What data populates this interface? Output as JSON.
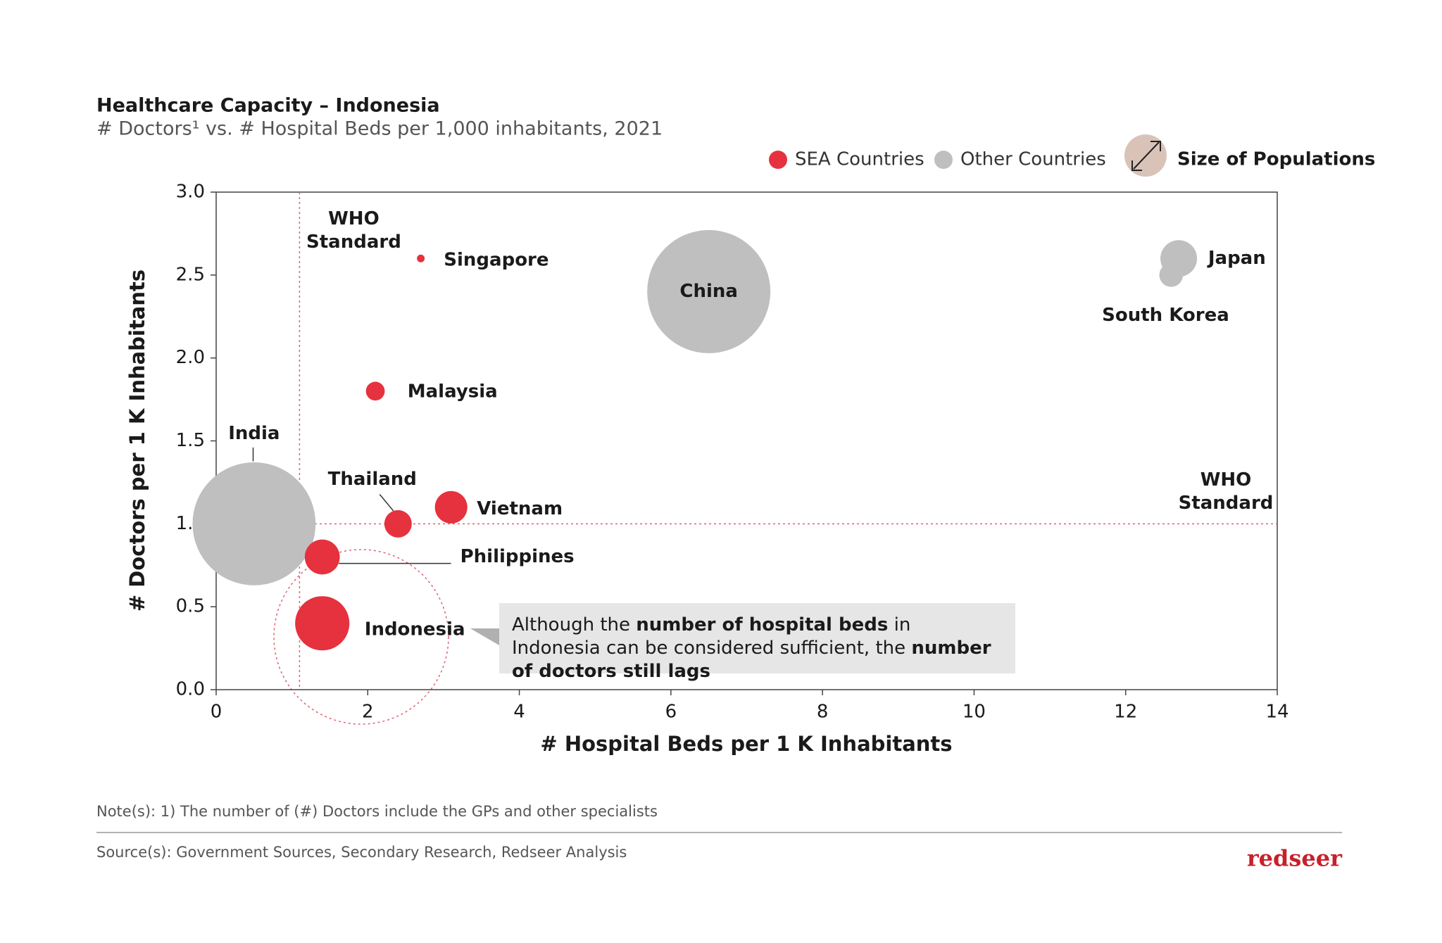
{
  "chart_data": {
    "type": "bubble",
    "title": "Healthcare Capacity – Indonesia",
    "subtitle": "# Doctors¹ vs. # Hospital Beds per 1,000 inhabitants, 2021",
    "x_label": "# Hospital Beds per 1 K Inhabitants",
    "y_label": "# Doctors per 1 K Inhabitants",
    "xlim": [
      0,
      14
    ],
    "xticks": [
      0,
      2,
      4,
      6,
      8,
      10,
      12,
      14
    ],
    "ylim": [
      0,
      3
    ],
    "yticks": [
      {
        "value": 0,
        "label": "0.0"
      },
      0.5,
      {
        "value": 1,
        "label": "1.0"
      },
      1.5,
      {
        "value": 2,
        "label": "2.0"
      },
      2.5,
      {
        "value": 3,
        "label": "3.0"
      }
    ],
    "grid": false,
    "size_label": "Size of Populations",
    "series": [
      {
        "name": "SEA Countries",
        "color": "#e5323e",
        "labels": [
          "Singapore",
          "Malaysia",
          "Thailand",
          "Vietnam",
          "Philippines",
          "Indonesia"
        ],
        "x": [
          2.7,
          2.1,
          2.4,
          3.1,
          1.4,
          1.4
        ],
        "values": [
          2.6,
          1.8,
          1.0,
          1.1,
          0.8,
          0.4
        ],
        "sizes": [
          5.5,
          33,
          70,
          98,
          114,
          274
        ]
      },
      {
        "name": "Other Countries",
        "color": "#bfbfbf",
        "labels": [
          "China",
          "India",
          "South Korea",
          "Japan"
        ],
        "x": [
          6.5,
          0.5,
          12.6,
          12.7
        ],
        "values": [
          2.4,
          1.0,
          2.5,
          2.6
        ],
        "sizes": [
          1412,
          1408,
          52,
          125
        ]
      }
    ],
    "reference_lines": [
      {
        "axis": "x",
        "value": 1.1,
        "label": "WHO Standard"
      },
      {
        "axis": "y",
        "value": 1.0,
        "label": "WHO Standard"
      }
    ],
    "annotation": [
      {
        "text": "Although the ",
        "bold": false
      },
      {
        "text": "number of hospital beds",
        "bold": true
      },
      {
        "text": " in Indonesia can be considered sufficient, the ",
        "bold": false
      },
      {
        "text": "number of doctors still lags",
        "bold": true
      }
    ]
  },
  "footer": {
    "note": "Note(s): 1) The number of (#) Doctors include the GPs and other specialists",
    "source": "Source(s): Government Sources, Secondary Research, Redseer Analysis",
    "logo": "redseer"
  }
}
